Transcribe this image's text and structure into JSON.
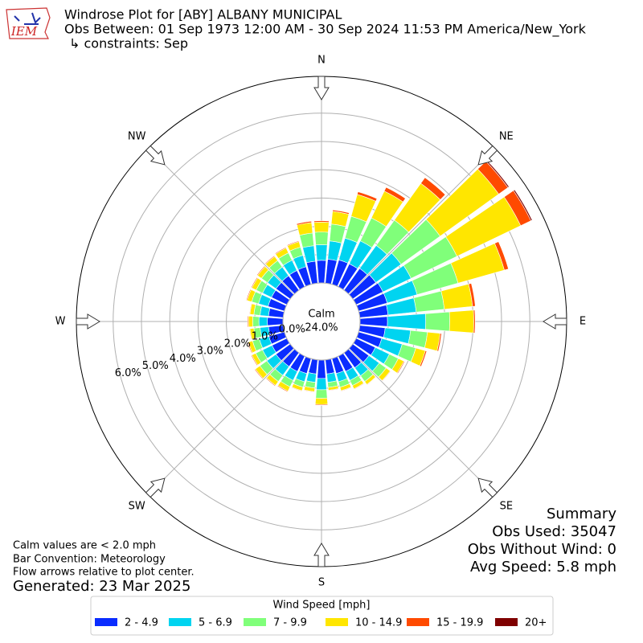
{
  "header": {
    "title": "Windrose Plot for [ABY] ALBANY MUNICIPAL",
    "subtitle": "Obs Between: 01 Sep 1973 12:00 AM - 30 Sep 2024 11:53 PM America/New_York",
    "constraints": "↳ constraints: Sep",
    "logo_text": "IEM"
  },
  "chart_data": {
    "type": "windrose",
    "x": [
      0,
      10,
      20,
      30,
      40,
      50,
      60,
      70,
      80,
      90,
      100,
      110,
      120,
      130,
      140,
      150,
      160,
      170,
      180,
      190,
      200,
      210,
      220,
      230,
      240,
      250,
      260,
      270,
      280,
      290,
      300,
      310,
      320,
      330,
      340,
      350
    ],
    "compass": [
      {
        "value": 0,
        "label": "N"
      },
      {
        "value": 45,
        "label": "NE"
      },
      {
        "value": 90,
        "label": "E"
      },
      {
        "value": 135,
        "label": "SE"
      },
      {
        "value": 180,
        "label": "S"
      },
      {
        "value": 225,
        "label": "SW"
      },
      {
        "value": 270,
        "label": "W"
      },
      {
        "value": 315,
        "label": "NW"
      }
    ],
    "rlim": [
      0,
      7.3
    ],
    "rticks": [
      {
        "value": 0,
        "label": "0.0%"
      },
      {
        "value": 1,
        "label": "1.0%"
      },
      {
        "value": 2,
        "label": "2.0%"
      },
      {
        "value": 3,
        "label": "3.0%"
      },
      {
        "value": 4,
        "label": "4.0%"
      },
      {
        "value": 5,
        "label": "5.0%"
      },
      {
        "value": 6,
        "label": "6.0%"
      }
    ],
    "grid": true,
    "calm_label": "Calm",
    "calm_value": 24,
    "calm_value_label": "24.0%",
    "legend_title": "Wind Speed [mph]",
    "series": [
      {
        "name": "2 - 4.9",
        "color": "#0a2cff",
        "values": [
          0.8,
          0.85,
          0.9,
          0.9,
          0.95,
          1.0,
          1.05,
          1.05,
          1.0,
          0.97,
          0.9,
          0.85,
          0.75,
          0.7,
          0.65,
          0.6,
          0.55,
          0.5,
          0.65,
          0.5,
          0.55,
          0.6,
          0.6,
          0.62,
          0.58,
          0.57,
          0.52,
          0.55,
          0.52,
          0.6,
          0.6,
          0.62,
          0.63,
          0.64,
          0.65,
          0.78
        ]
      },
      {
        "name": "5 - 6.9",
        "color": "#00d4f0",
        "values": [
          0.55,
          0.65,
          0.8,
          0.9,
          1.0,
          1.1,
          1.1,
          1.1,
          1.0,
          1.35,
          0.9,
          0.75,
          0.55,
          0.45,
          0.35,
          0.35,
          0.3,
          0.3,
          0.4,
          0.3,
          0.3,
          0.35,
          0.38,
          0.4,
          0.37,
          0.35,
          0.3,
          0.3,
          0.3,
          0.35,
          0.35,
          0.37,
          0.38,
          0.4,
          0.42,
          0.55
        ]
      },
      {
        "name": "7 - 9.9",
        "color": "#80ff7a",
        "values": [
          0.45,
          0.6,
          0.8,
          0.9,
          1.1,
          1.7,
          1.8,
          1.5,
          1.0,
          0.85,
          0.6,
          0.5,
          0.35,
          0.3,
          0.25,
          0.2,
          0.2,
          0.18,
          0.3,
          0.2,
          0.2,
          0.25,
          0.27,
          0.3,
          0.27,
          0.25,
          0.22,
          0.22,
          0.22,
          0.25,
          0.25,
          0.26,
          0.28,
          0.29,
          0.3,
          0.45
        ]
      },
      {
        "name": "10 - 14.9",
        "color": "#ffe600",
        "values": [
          0.35,
          0.45,
          0.8,
          1.05,
          1.6,
          2.55,
          2.5,
          1.7,
          1.0,
          0.85,
          0.45,
          0.35,
          0.22,
          0.18,
          0.13,
          0.13,
          0.13,
          0.1,
          0.22,
          0.13,
          0.13,
          0.17,
          0.17,
          0.2,
          0.15,
          0.15,
          0.14,
          0.15,
          0.14,
          0.17,
          0.17,
          0.17,
          0.18,
          0.19,
          0.2,
          0.37
        ]
      },
      {
        "name": "15 - 19.9",
        "color": "#ff4a00",
        "values": [
          0.05,
          0.05,
          0.1,
          0.15,
          0.25,
          0.4,
          0.4,
          0.15,
          0.1,
          0.05,
          0.05,
          0.05,
          0.03,
          0.02,
          0.02,
          0.02,
          0.02,
          0.02,
          0.03,
          0.02,
          0.02,
          0.03,
          0.03,
          0.03,
          0.03,
          0.03,
          0.02,
          0.03,
          0.02,
          0.03,
          0.03,
          0.03,
          0.03,
          0.03,
          0.03,
          0.05
        ]
      },
      {
        "name": "20+",
        "color": "#7f0000",
        "values": [
          0,
          0,
          0,
          0,
          0,
          0.05,
          0.05,
          0,
          0,
          0,
          0,
          0,
          0,
          0,
          0,
          0,
          0,
          0,
          0,
          0,
          0,
          0,
          0,
          0,
          0,
          0,
          0,
          0,
          0,
          0,
          0,
          0,
          0,
          0,
          0,
          0
        ]
      }
    ]
  },
  "notes": [
    "Calm values are < 2.0 mph",
    "Bar Convention: Meteorology",
    "Flow arrows relative to plot center."
  ],
  "generated": "Generated: 23 Mar 2025",
  "summary": [
    "Summary",
    "Obs Used: 35047",
    "Obs Without Wind: 0",
    "Avg Speed: 5.8 mph"
  ]
}
